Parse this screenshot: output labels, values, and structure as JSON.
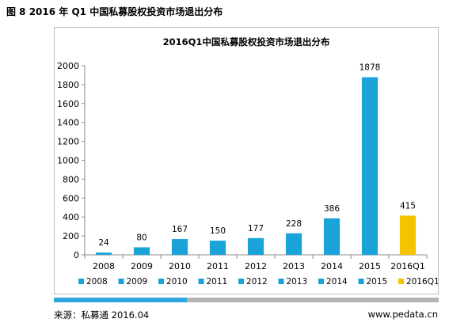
{
  "figure_title": "图 8 2016 年 Q1 中国私募股权投资市场退出分布",
  "source": "来源：私募通 2016.04",
  "website": "www.pedata.cn",
  "colors": {
    "bar": "#1aa3d9",
    "highlight": "#f5c400",
    "axis": "#8c8c8c",
    "grid": "#d9d9d9"
  },
  "chart_data": {
    "type": "bar",
    "title": "2016Q1中国私募股权投资市场退出分布",
    "categories": [
      "2008",
      "2009",
      "2010",
      "2011",
      "2012",
      "2013",
      "2014",
      "2015",
      "2016Q1"
    ],
    "values": [
      24,
      80,
      167,
      150,
      177,
      228,
      386,
      1878,
      415
    ],
    "highlight_index": 8,
    "ylim": [
      0,
      2000
    ],
    "yticks": [
      0,
      200,
      400,
      600,
      800,
      1000,
      1200,
      1400,
      1600,
      1800,
      2000
    ],
    "xlabel": "",
    "ylabel": "",
    "grid": false,
    "legend": {
      "placement": "bottom",
      "entries": [
        "2008",
        "2009",
        "2010",
        "2011",
        "2012",
        "2013",
        "2014",
        "2015",
        "2016Q1"
      ]
    }
  }
}
